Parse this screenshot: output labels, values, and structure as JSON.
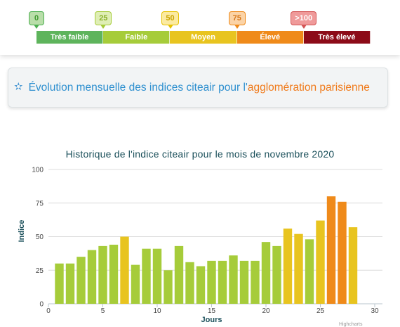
{
  "scale": {
    "markers": [
      {
        "label": "0",
        "bg": "#b9deaa",
        "fg": "#3f9a2f",
        "border": "#4caf50"
      },
      {
        "label": "25",
        "bg": "#dfeeb5",
        "fg": "#8ab02a",
        "border": "#a6cc3a"
      },
      {
        "label": "50",
        "bg": "#fbeaa1",
        "fg": "#c9a400",
        "border": "#e6c200"
      },
      {
        "label": "75",
        "bg": "#fbd3a6",
        "fg": "#d7781c",
        "border": "#ef8a1a"
      },
      {
        "label": ">100",
        "bg": "#ef9a9a",
        "fg": "#ffffff",
        "border": "#d35454"
      }
    ],
    "segments": [
      {
        "label": "Très faible",
        "color": "#5eb45c"
      },
      {
        "label": "Faible",
        "color": "#a6cc3a"
      },
      {
        "label": "Moyen",
        "color": "#e8c41f"
      },
      {
        "label": "Élevé",
        "color": "#ef8a1a"
      },
      {
        "label": "Très élevé",
        "color": "#8c0b18"
      }
    ]
  },
  "banner": {
    "icon": "star-outline-icon",
    "text": "Évolution mensuelle des indices citeair pour l'",
    "accent": "agglomération parisienne"
  },
  "chart_data": {
    "type": "bar",
    "title": "Historique de l'indice citeair pour le mois de novembre 2020",
    "xlabel": "Jours",
    "ylabel": "Indice",
    "xlim": [
      0,
      30
    ],
    "ylim": [
      0,
      100
    ],
    "x_ticks": [
      0,
      5,
      10,
      15,
      20,
      25,
      30
    ],
    "y_ticks": [
      0,
      25,
      50,
      75,
      100
    ],
    "grid": true,
    "colors": {
      "faible": "#a6cc3a",
      "moyen": "#e8c41f",
      "eleve": "#ef8a1a"
    },
    "x": [
      1,
      2,
      3,
      4,
      5,
      6,
      7,
      8,
      9,
      10,
      11,
      12,
      13,
      14,
      15,
      16,
      17,
      18,
      19,
      20,
      21,
      22,
      23,
      24,
      25,
      26,
      27,
      28
    ],
    "values": [
      30,
      30,
      35,
      40,
      43,
      44,
      50,
      29,
      41,
      41,
      25,
      43,
      31,
      28,
      32,
      32,
      36,
      32,
      32,
      46,
      43,
      56,
      52,
      48,
      62,
      80,
      76,
      57
    ]
  },
  "credit": "Highcharts"
}
